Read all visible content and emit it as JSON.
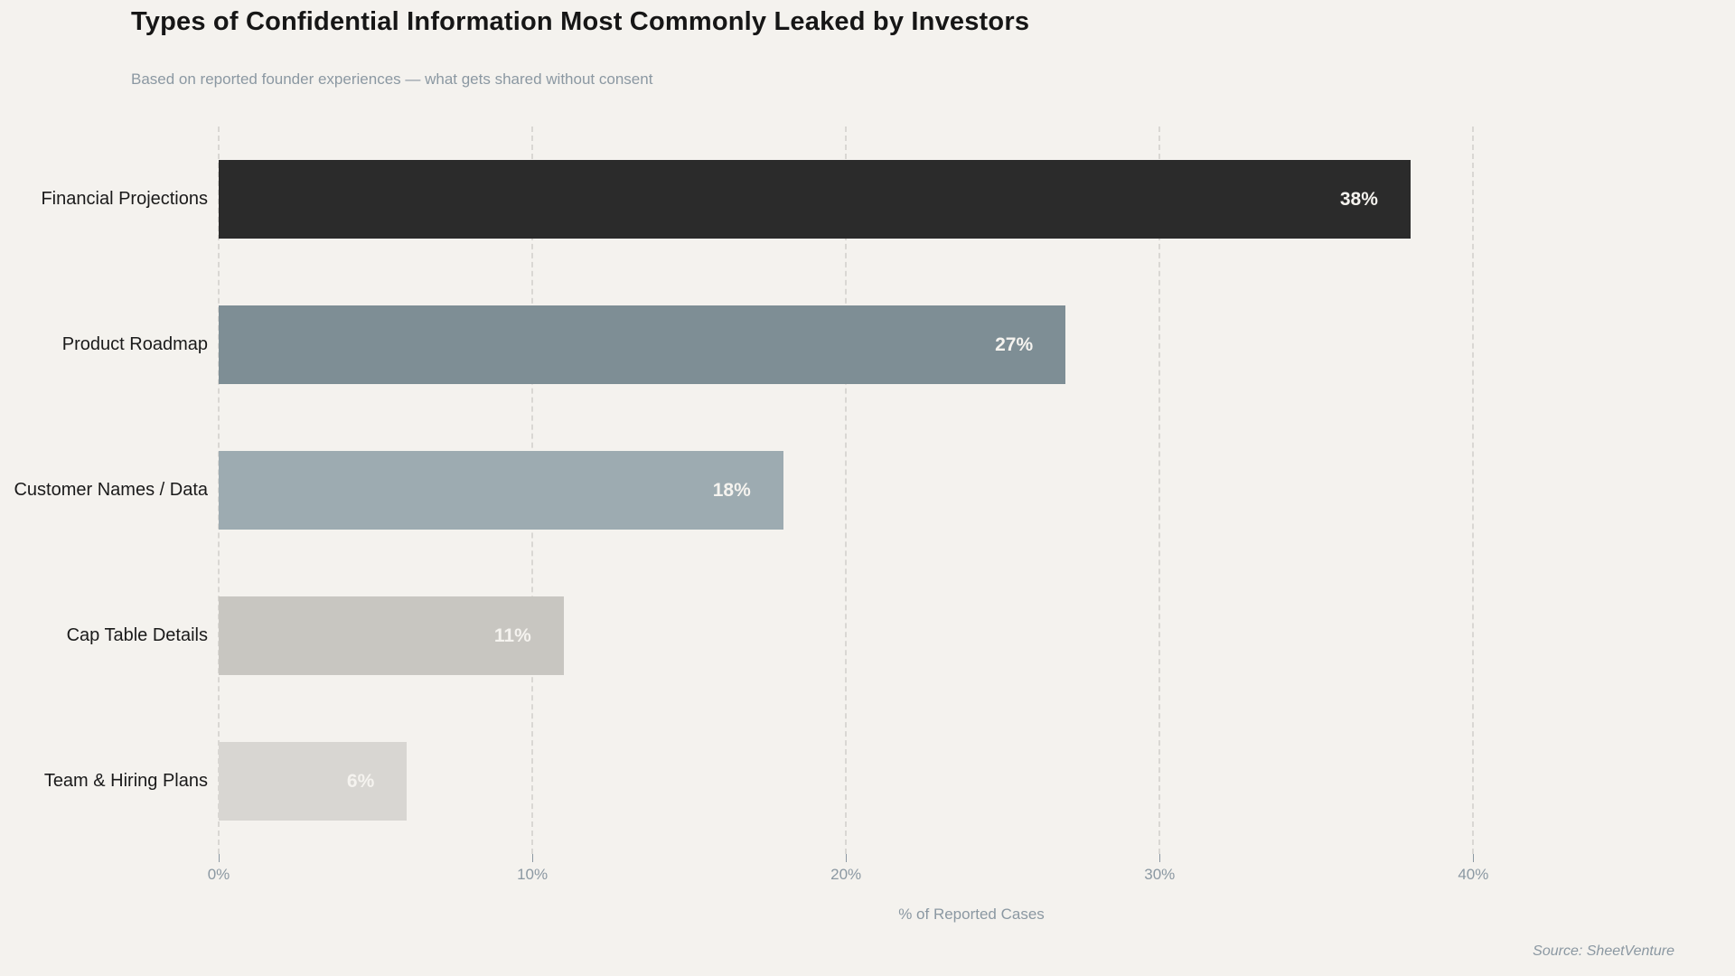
{
  "header": {
    "title": "Types of Confidential Information Most Commonly Leaked by Investors",
    "subtitle": "Based on reported founder experiences — what gets shared without consent"
  },
  "footer": {
    "source": "Source: SheetVenture"
  },
  "colors": {
    "background": "#f4f2ee",
    "title_text": "#161616",
    "muted_text": "#8b98a2",
    "gridline": "#d9d7d3",
    "bar_value_text": "#f5f3ef"
  },
  "chart_data": {
    "type": "bar",
    "orientation": "horizontal",
    "title": "Types of Confidential Information Most Commonly Leaked by Investors",
    "subtitle": "Based on reported founder experiences — what gets shared without consent",
    "categories": [
      "Financial Projections",
      "Product Roadmap",
      "Customer Names / Data",
      "Cap Table Details",
      "Team & Hiring Plans"
    ],
    "values": [
      38,
      27,
      18,
      11,
      6
    ],
    "value_labels": [
      "38%",
      "27%",
      "18%",
      "11%",
      "6%"
    ],
    "bar_colors": [
      "#2b2b2b",
      "#7e8e95",
      "#9dabb1",
      "#c8c6c1",
      "#d8d6d2"
    ],
    "xlabel": "% of Reported Cases",
    "ylabel": "",
    "xlim": [
      0,
      48
    ],
    "xticks": [
      0,
      10,
      20,
      30,
      40
    ],
    "xtick_labels": [
      "0%",
      "10%",
      "20%",
      "30%",
      "40%"
    ],
    "grid": "vertical-dashed",
    "legend": false,
    "source": "Source: SheetVenture"
  }
}
